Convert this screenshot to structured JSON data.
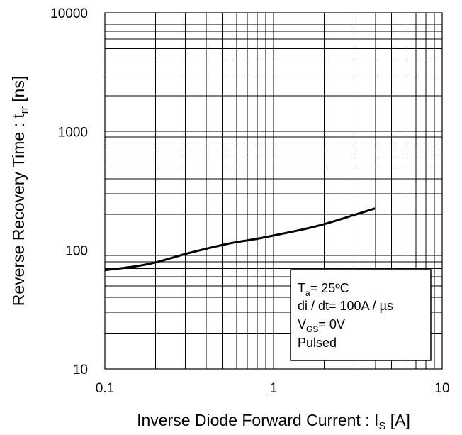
{
  "chart_data": {
    "type": "line",
    "x_scale": "log",
    "y_scale": "log",
    "xlim": [
      0.1,
      10
    ],
    "ylim": [
      10,
      10000
    ],
    "grid": true,
    "xticks": [
      "0.1",
      "1",
      "10"
    ],
    "yticks": [
      "10",
      "100",
      "1000",
      "10000"
    ],
    "xlabel": {
      "main": "Inverse Diode Forward Current : I",
      "sub": "S",
      "unit": " [A]"
    },
    "ylabel": {
      "main": "Reverse Recovery Time : t",
      "sub": "rr",
      "unit": " [ns]"
    },
    "legend_position": "bottom-right",
    "conditions": [
      {
        "main": "T",
        "sub": "a",
        "rest": "= 25ºC"
      },
      {
        "main": "di / dt= 100A / µs",
        "sub": "",
        "rest": ""
      },
      {
        "main": "V",
        "sub": "GS",
        "rest": "= 0V"
      },
      {
        "main": "Pulsed",
        "sub": "",
        "rest": ""
      }
    ],
    "series": [
      {
        "x": [
          0.1,
          0.15,
          0.2,
          0.3,
          0.4,
          0.5,
          0.6,
          0.7,
          0.8,
          1.0,
          1.5,
          2.0,
          3.0,
          4.0
        ],
        "y": [
          68,
          73,
          79,
          93,
          103,
          111,
          117,
          121,
          125,
          133,
          150,
          166,
          198,
          225
        ]
      }
    ]
  }
}
